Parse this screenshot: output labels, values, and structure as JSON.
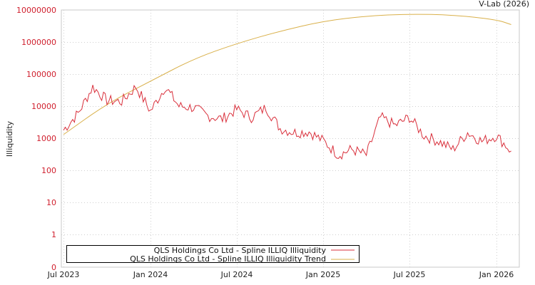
{
  "credit": "V-Lab (2026)",
  "chart_data": {
    "type": "line",
    "title": "",
    "xlabel": "",
    "ylabel": "Illiquidity",
    "yscale": "log",
    "ylim": [
      0,
      10000000
    ],
    "y_ticks": [
      "10000000",
      "1000000",
      "100000",
      "10000",
      "1000",
      "100",
      "10",
      "1",
      "0"
    ],
    "x_ticks": [
      "Jul 2023",
      "Jan 2024",
      "Jul 2024",
      "Jan 2025",
      "Jul 2025",
      "Jan 2026"
    ],
    "grid": true,
    "legend_position": "bottom-left inside",
    "colors": {
      "illiquidity": "#d9303c",
      "trend": "#d9b04a",
      "ytick": "#d0202e"
    },
    "series": [
      {
        "name": "QLS Holdings Co Ltd - Spline ILLIQ Illiquidity",
        "color": "#d9303c",
        "x": [
          "2023-07",
          "2023-08",
          "2023-09",
          "2023-10",
          "2023-11",
          "2023-12",
          "2024-01",
          "2024-02",
          "2024-03",
          "2024-04",
          "2024-05",
          "2024-06",
          "2024-07",
          "2024-08",
          "2024-09",
          "2024-10",
          "2024-11",
          "2024-12",
          "2025-01",
          "2025-02",
          "2025-03",
          "2025-04",
          "2025-05",
          "2025-06",
          "2025-07",
          "2025-08",
          "2025-09",
          "2025-10",
          "2025-11",
          "2025-12",
          "2026-01",
          "2026-02"
        ],
        "values": [
          1800,
          6000,
          40000,
          15000,
          14000,
          40000,
          7000,
          40000,
          10000,
          9000,
          5000,
          4000,
          8000,
          4500,
          9000,
          2000,
          1500,
          1600,
          800,
          300,
          450,
          300,
          4500,
          2500,
          4500,
          1200,
          800,
          450,
          1500,
          800,
          1200,
          400
        ]
      },
      {
        "name": "QLS Holdings Co Ltd - Spline ILLIQ Illiquidity Trend",
        "color": "#d9b04a",
        "x": [
          "2023-07",
          "2023-10",
          "2024-01",
          "2024-04",
          "2024-07",
          "2024-10",
          "2025-01",
          "2025-04",
          "2025-07",
          "2025-10",
          "2026-01",
          "2026-02"
        ],
        "values": [
          1300,
          12000,
          60000,
          300000,
          900000,
          2200000,
          4500000,
          6500000,
          7500000,
          7000000,
          5000000,
          3500000
        ]
      }
    ]
  },
  "legend": {
    "items": [
      {
        "label": "QLS Holdings Co Ltd - Spline ILLIQ Illiquidity",
        "color": "#d9303c"
      },
      {
        "label": "QLS Holdings Co Ltd - Spline ILLIQ Illiquidity Trend",
        "color": "#d9b04a"
      }
    ]
  }
}
